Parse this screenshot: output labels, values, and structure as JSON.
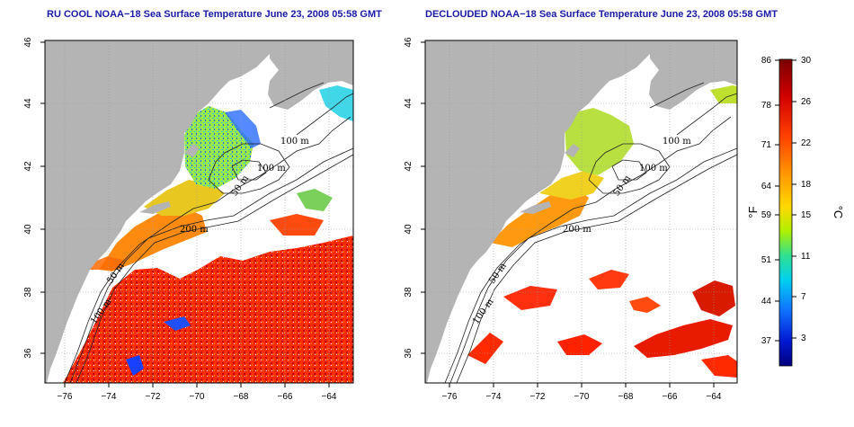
{
  "panels": [
    {
      "title": "RU COOL NOAA−18 Sea Surface Temperature June 23, 2008 05:58 GMT",
      "contour_labels": [
        "100 m",
        "100 m",
        "50 m",
        "200 m",
        "50 m",
        "100 m"
      ]
    },
    {
      "title": "DECLOUDED NOAA−18 Sea Surface Temperature June 23, 2008 05:58 GMT",
      "contour_labels": [
        "100 m",
        "100 m",
        "50 m",
        "200 m",
        "50 m",
        "100 m"
      ]
    }
  ],
  "axes": {
    "lon_ticks": [
      "−76",
      "−74",
      "−72",
      "−70",
      "−68",
      "−66",
      "−64"
    ],
    "lat_ticks": [
      "46",
      "44",
      "42",
      "40",
      "38",
      "36"
    ]
  },
  "colorbar": {
    "fahrenheit_ticks": [
      "86",
      "78",
      "71",
      "64",
      "59",
      "51",
      "44",
      "37"
    ],
    "celsius_ticks": [
      "30",
      "26",
      "22",
      "18",
      "15",
      "11",
      "7",
      "3"
    ],
    "fahrenheit_unit": "°F",
    "celsius_unit": "°C",
    "colors": [
      "#7a0000",
      "#c80000",
      "#ff3a00",
      "#ff9a00",
      "#ffd700",
      "#c8f000",
      "#40e080",
      "#00d8e8",
      "#1080ff",
      "#0010c0",
      "#00007a"
    ]
  },
  "colors": {
    "land": "#b4b4b4",
    "water_cloud": "#ffffff",
    "title": "#1a1aa8"
  }
}
